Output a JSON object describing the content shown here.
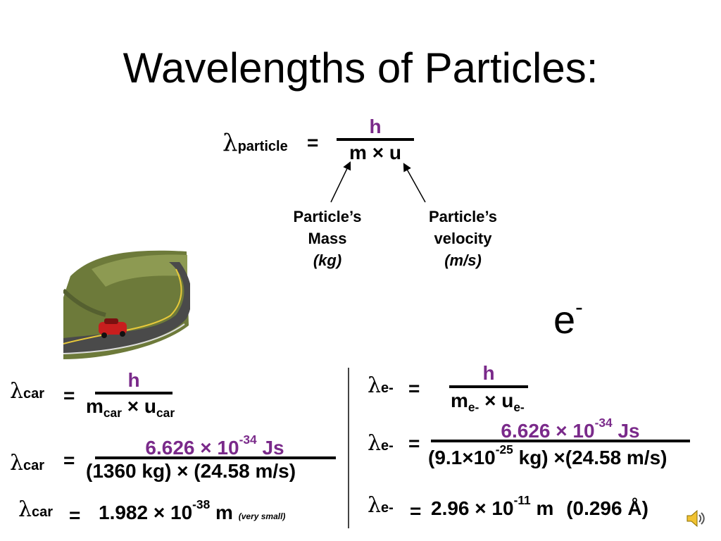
{
  "title": "Wavelengths of Particles:",
  "lambda": "λ",
  "top_formula": {
    "lhs_sub": "particle",
    "equals": "=",
    "numerator": "h",
    "denominator_m": "m",
    "times": "×",
    "denominator_u": "u"
  },
  "mass_label": {
    "line1": "Particle’s",
    "line2": "Mass",
    "unit": "(kg)"
  },
  "velocity_label": {
    "line1": "Particle’s",
    "line2": "velocity",
    "unit": "(m/s)"
  },
  "electron_symbol": {
    "base": "e",
    "sup": "-"
  },
  "car": {
    "sub": "car",
    "eq1": {
      "equals": "=",
      "numerator": "h",
      "den_m": "m",
      "den_m_sub": "car",
      "times": "×",
      "den_u": "u",
      "den_u_sub": "car"
    },
    "eq2": {
      "equals": "=",
      "num_value": "6.626",
      "times": "×",
      "num_base": "10",
      "num_exp": "-34",
      "num_unit": "Js",
      "denominator": "(1360 kg) × (24.58 m/s)"
    },
    "eq3": {
      "equals": "=",
      "value": "1.982",
      "times": "×",
      "base": "10",
      "exp": "-38",
      "unit": "m",
      "note": "(very small)"
    }
  },
  "electron": {
    "sub": "e-",
    "eq1": {
      "equals": "=",
      "numerator": "h",
      "den_m": "m",
      "den_m_sub": "e-",
      "times": "×",
      "den_u": "u",
      "den_u_sub": "e-"
    },
    "eq2": {
      "equals": "=",
      "num_value": "6.626",
      "times": "×",
      "num_base": "10",
      "num_exp": "-34",
      "num_unit": "Js",
      "den_part1": "(9.1×10",
      "den_exp": "-25",
      "den_part2": " kg) ×(24.58 m/s)"
    },
    "eq3": {
      "equals": "=",
      "value": "2.96",
      "times": "×",
      "base": "10",
      "exp": "-11",
      "unit": "m",
      "angstrom": "(0.296 Å)"
    }
  },
  "icons": {
    "car_image": "car-on-road-icon",
    "speaker": "speaker-icon"
  },
  "colors": {
    "accent": "#7a2a8a",
    "text": "#000000",
    "background": "#ffffff"
  }
}
